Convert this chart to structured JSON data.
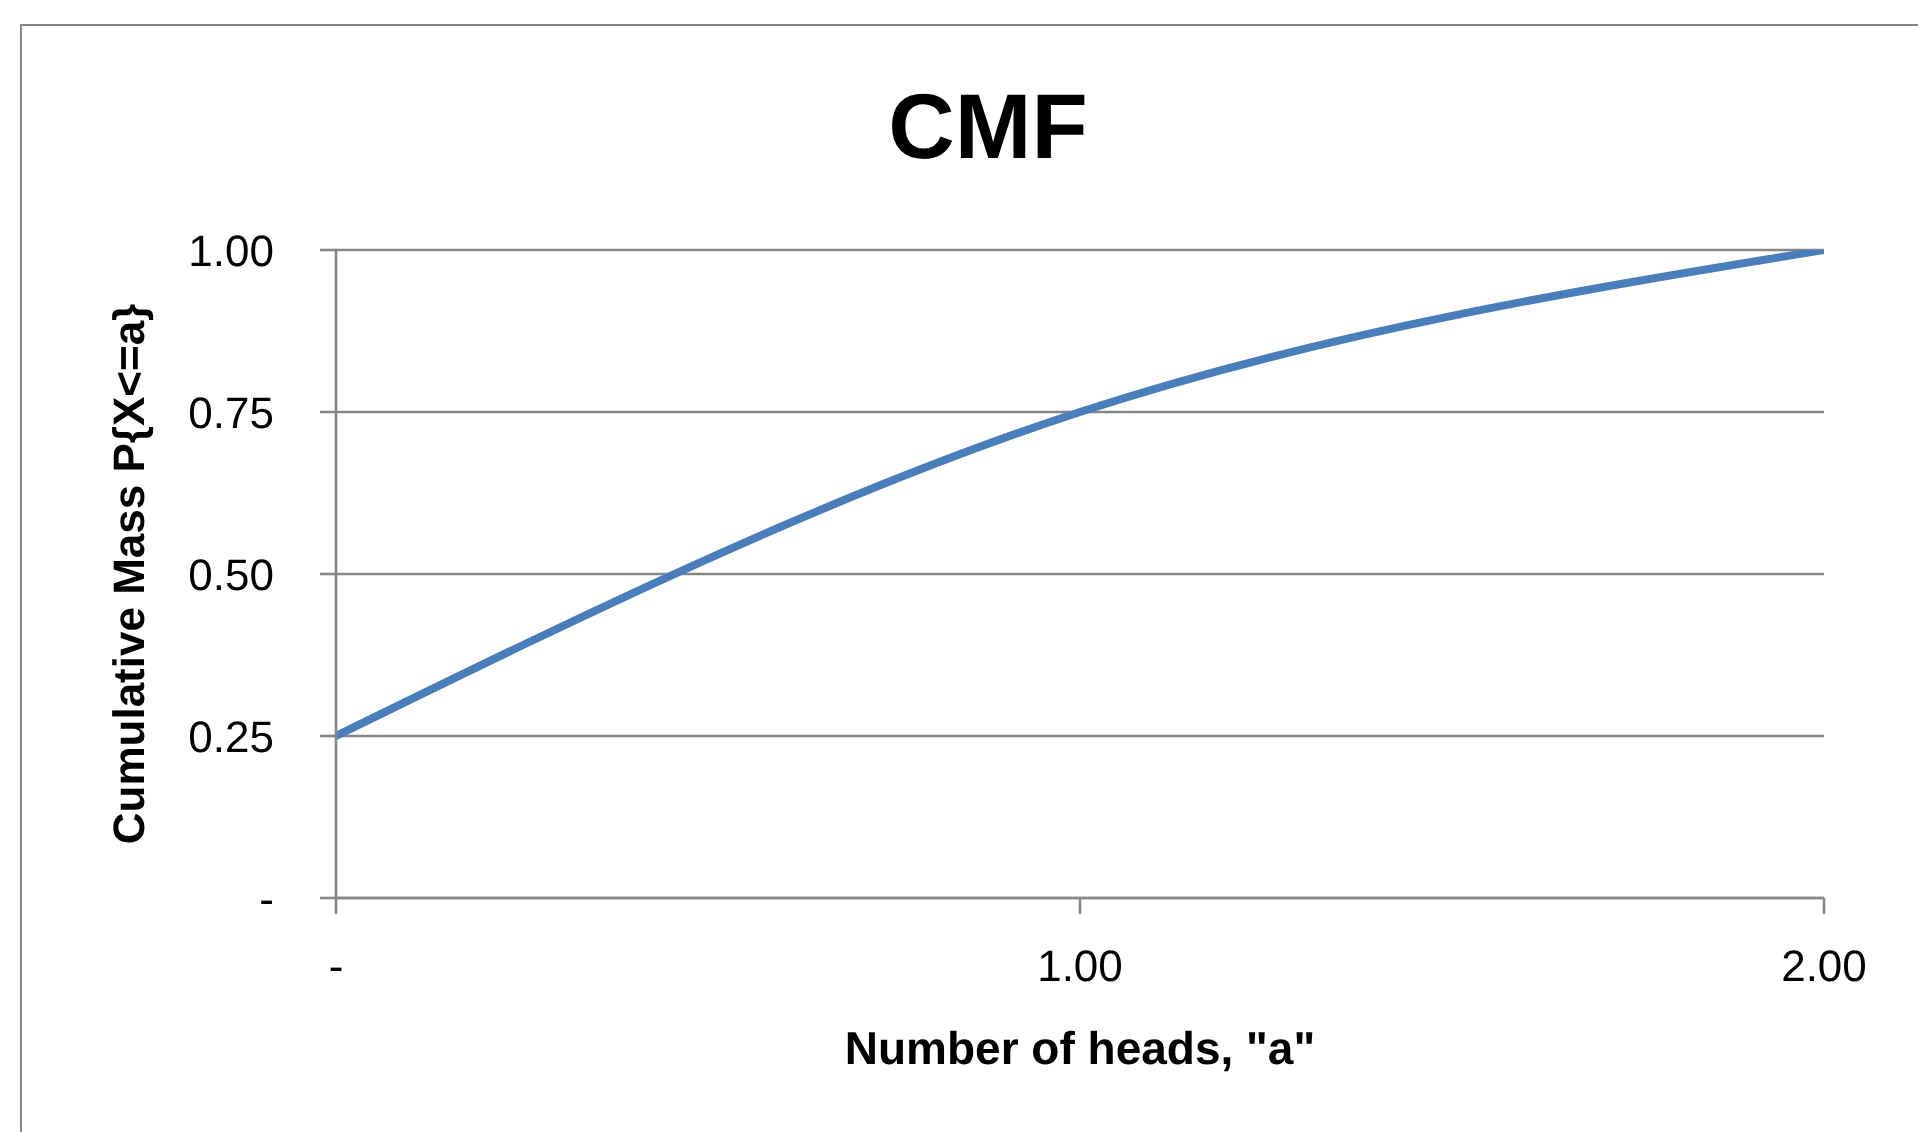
{
  "chart_data": {
    "type": "line",
    "title": "CMF",
    "xlabel": "Number of heads, \"a\"",
    "ylabel": "Cumulative Mass P{X<=a}",
    "x": [
      0,
      1,
      2
    ],
    "values": [
      0.25,
      0.75,
      1.0
    ],
    "color": "#4a7ebb",
    "xlim": [
      0,
      2
    ],
    "xticks": [
      {
        "value": 0,
        "label": "-"
      },
      {
        "value": 1,
        "label": "1.00"
      },
      {
        "value": 2,
        "label": "2.00"
      }
    ],
    "ylim": [
      0,
      1
    ],
    "yticks": [
      {
        "value": 0,
        "label": "-"
      },
      0.25,
      {
        "value": 0.5,
        "label": "0.50"
      },
      0.75,
      {
        "value": 1,
        "label": "1.00"
      }
    ],
    "grid": "y",
    "marker": "none"
  }
}
